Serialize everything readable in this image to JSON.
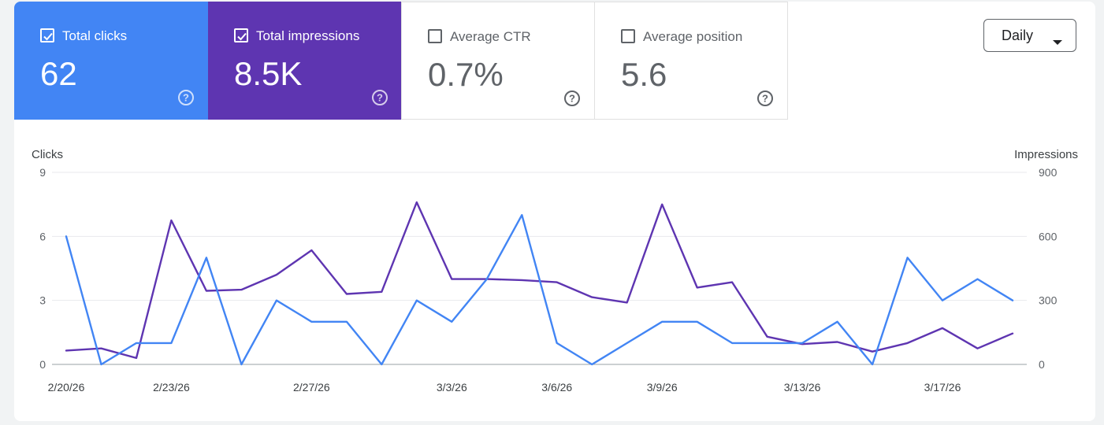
{
  "metrics": [
    {
      "label": "Total clicks",
      "value": "62",
      "selected": true,
      "color": "#4285f4"
    },
    {
      "label": "Total impressions",
      "value": "8.5K",
      "selected": true,
      "color": "#5e35b1"
    },
    {
      "label": "Average CTR",
      "value": "0.7%",
      "selected": false,
      "color": "#ffffff"
    },
    {
      "label": "Average position",
      "value": "5.6",
      "selected": false,
      "color": "#ffffff"
    }
  ],
  "period_select": {
    "label": "Daily",
    "icon": "caret-down-icon"
  },
  "chart_data": {
    "type": "line",
    "x": [
      "2/20/26",
      "2/21/26",
      "2/22/26",
      "2/23/26",
      "2/24/26",
      "2/25/26",
      "2/26/26",
      "2/27/26",
      "2/28/26",
      "3/1/26",
      "3/2/26",
      "3/3/26",
      "3/4/26",
      "3/5/26",
      "3/6/26",
      "3/7/26",
      "3/8/26",
      "3/9/26",
      "3/10/26",
      "3/11/26",
      "3/12/26",
      "3/13/26",
      "3/14/26",
      "3/15/26",
      "3/16/26",
      "3/17/26",
      "3/18/26",
      "3/19/26"
    ],
    "xticks": [
      "2/20/26",
      "2/23/26",
      "2/27/26",
      "3/3/26",
      "3/6/26",
      "3/9/26",
      "3/13/26",
      "3/17/26"
    ],
    "left_axis": {
      "label": "Clicks",
      "ticks": [
        "0",
        "3",
        "6",
        "9"
      ],
      "range": [
        0,
        9
      ]
    },
    "right_axis": {
      "label": "Impressions",
      "ticks": [
        "0",
        "300",
        "600",
        "900"
      ],
      "range": [
        0,
        900
      ]
    },
    "series": [
      {
        "name": "Total clicks",
        "axis": "left",
        "color": "#4285f4",
        "values": [
          6,
          0,
          1,
          1,
          5,
          0,
          3,
          2,
          2,
          0,
          3,
          2,
          4,
          7,
          1,
          0,
          1,
          2,
          2,
          1,
          1,
          1,
          2,
          0,
          5,
          3,
          4,
          3
        ]
      },
      {
        "name": "Total impressions",
        "axis": "right",
        "color": "#5e35b1",
        "values": [
          65,
          75,
          30,
          675,
          345,
          350,
          420,
          535,
          330,
          340,
          760,
          400,
          400,
          395,
          385,
          315,
          290,
          750,
          360,
          385,
          130,
          95,
          105,
          60,
          100,
          170,
          75,
          145
        ]
      }
    ],
    "grid": true
  }
}
